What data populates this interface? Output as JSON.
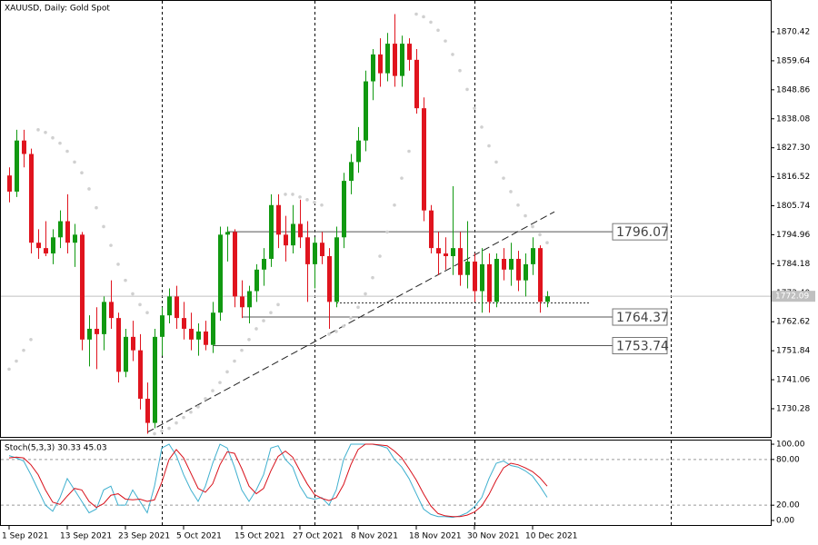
{
  "chart_data": {
    "type": "candlestick",
    "title": "XAUUSD, Daily:  Gold Spot",
    "categories": [
      "1 Sep 2021",
      null,
      null,
      null,
      null,
      null,
      null,
      null,
      "13 Sep 2021",
      null,
      null,
      null,
      null,
      null,
      null,
      null,
      "23 Sep 2021",
      null,
      null,
      null,
      null,
      null,
      null,
      null,
      "5 Oct 2021",
      null,
      null,
      null,
      null,
      null,
      null,
      null,
      "15 Oct 2021",
      null,
      null,
      null,
      null,
      null,
      null,
      null,
      "27 Oct 2021",
      null,
      null,
      null,
      null,
      null,
      null,
      null,
      "8 Nov 2021",
      null,
      null,
      null,
      null,
      null,
      null,
      null,
      "18 Nov 2021",
      null,
      null,
      null,
      null,
      null,
      null,
      null,
      "30 Nov 2021",
      null,
      null,
      null,
      null,
      null,
      null,
      null,
      "10 Dec 2021",
      null,
      null
    ],
    "open": [
      1817,
      1811,
      1830,
      1825,
      1792,
      1790,
      1788,
      1794,
      1800,
      1792,
      1795,
      1756,
      1760,
      1758,
      1770,
      1764,
      1744,
      1757,
      1752,
      1734,
      1725,
      1757,
      1765,
      1772,
      1764,
      1760,
      1756,
      1759,
      1754,
      1766,
      1795,
      1796,
      1772,
      1768,
      1774,
      1782,
      1786,
      1806,
      1795,
      1791,
      1799,
      1794,
      1784,
      1792,
      1787,
      1770,
      1794,
      1815,
      1822,
      1830,
      1852,
      1862,
      1855,
      1866,
      1854,
      1866,
      1860,
      1842,
      1804,
      1790,
      1788,
      1787,
      1790,
      1780,
      1785,
      1774,
      1784,
      1770,
      1786,
      1782,
      1786,
      1778,
      1784,
      1790,
      1770
    ],
    "high": [
      1820,
      1834,
      1834,
      1827,
      1797,
      1800,
      1797,
      1804,
      1810,
      1799,
      1796,
      1765,
      1768,
      1772,
      1778,
      1766,
      1760,
      1763,
      1758,
      1740,
      1760,
      1768,
      1775,
      1776,
      1770,
      1766,
      1762,
      1763,
      1770,
      1798,
      1798,
      1797,
      1778,
      1776,
      1784,
      1790,
      1810,
      1810,
      1802,
      1806,
      1808,
      1800,
      1794,
      1796,
      1790,
      1798,
      1818,
      1825,
      1835,
      1856,
      1864,
      1868,
      1870,
      1877,
      1869,
      1868,
      1864,
      1846,
      1806,
      1796,
      1794,
      1813,
      1796,
      1800,
      1788,
      1790,
      1788,
      1788,
      1790,
      1792,
      1789,
      1788,
      1794,
      1791,
      1774
    ],
    "low": [
      1807,
      1809,
      1820,
      1788,
      1786,
      1787,
      1784,
      1790,
      1788,
      1783,
      1752,
      1746,
      1745,
      1752,
      1760,
      1740,
      1742,
      1748,
      1730,
      1721,
      1723,
      1750,
      1762,
      1760,
      1756,
      1752,
      1750,
      1752,
      1751,
      1763,
      1785,
      1768,
      1764,
      1762,
      1770,
      1776,
      1783,
      1790,
      1785,
      1788,
      1790,
      1770,
      1775,
      1784,
      1760,
      1768,
      1790,
      1810,
      1818,
      1826,
      1845,
      1850,
      1852,
      1850,
      1850,
      1856,
      1840,
      1800,
      1788,
      1780,
      1782,
      1780,
      1776,
      1775,
      1770,
      1766,
      1766,
      1768,
      1778,
      1776,
      1774,
      1772,
      1780,
      1766,
      1768
    ],
    "close": [
      1811,
      1830,
      1825,
      1792,
      1790,
      1788,
      1794,
      1800,
      1792,
      1795,
      1756,
      1760,
      1758,
      1770,
      1764,
      1744,
      1757,
      1752,
      1734,
      1725,
      1757,
      1765,
      1772,
      1764,
      1760,
      1756,
      1759,
      1754,
      1766,
      1795,
      1796,
      1772,
      1768,
      1774,
      1782,
      1786,
      1806,
      1795,
      1791,
      1799,
      1794,
      1784,
      1792,
      1787,
      1770,
      1794,
      1815,
      1822,
      1830,
      1852,
      1862,
      1855,
      1866,
      1854,
      1866,
      1860,
      1842,
      1804,
      1790,
      1788,
      1787,
      1790,
      1780,
      1785,
      1774,
      1784,
      1770,
      1786,
      1782,
      1786,
      1778,
      1784,
      1790,
      1770,
      1772.09
    ],
    "up_color": "#119911",
    "down_color": "#e0141e",
    "sar": [
      1745,
      1748,
      1752,
      1756,
      1834,
      1833,
      1831,
      1829,
      1826,
      1822,
      1818,
      1812,
      1805,
      1798,
      1791,
      1784,
      1778,
      1773,
      1769,
      1766,
      1721,
      1722,
      1723,
      1725,
      1727,
      1729,
      1731,
      1734,
      1737,
      1740,
      1744,
      1748,
      1752,
      1756,
      1760,
      1763,
      1766,
      1769,
      1810,
      1810,
      1809,
      1808,
      1807,
      1806,
      1758,
      1759,
      1761,
      1764,
      1768,
      1773,
      1779,
      1787,
      1796,
      1806,
      1816,
      1826,
      1877,
      1876,
      1874,
      1871,
      1867,
      1862,
      1856,
      1849,
      1842,
      1835,
      1828,
      1822,
      1816,
      1811,
      1806,
      1802,
      1798,
      1795,
      1792
    ],
    "sar_color": "#d0d0d0",
    "ylim": [
      1719.8,
      1882.24
    ],
    "yticks": [
      {
        "value": 1870.42,
        "label": "1870.42"
      },
      {
        "value": 1859.64,
        "label": "1859.64"
      },
      {
        "value": 1848.86,
        "label": "1848.86"
      },
      {
        "value": 1838.08,
        "label": "1838.08"
      },
      {
        "value": 1827.3,
        "label": "1827.30"
      },
      {
        "value": 1816.52,
        "label": "1816.52"
      },
      {
        "value": 1805.74,
        "label": "1805.74"
      },
      {
        "value": 1794.96,
        "label": "1794.96"
      },
      {
        "value": 1784.18,
        "label": "1784.18"
      },
      {
        "value": 1773.4,
        "label": "1773.40"
      },
      {
        "value": 1762.62,
        "label": "1762.62"
      },
      {
        "value": 1751.84,
        "label": "1751.84"
      },
      {
        "value": 1741.06,
        "label": "1741.06"
      },
      {
        "value": 1730.28,
        "label": "1730.28"
      }
    ],
    "levels": [
      {
        "value": 1796.07,
        "label": "1796.07",
        "from": 30
      },
      {
        "value": 1764.37,
        "label": "1764.37",
        "from": 32
      },
      {
        "value": 1753.74,
        "label": "1753.74",
        "from": 28
      }
    ],
    "dotted_level": {
      "value": 1769.6,
      "from": 45
    },
    "current_price": {
      "value": 1772.09,
      "label": "1772.09"
    },
    "trendline": [
      [
        19,
        1721.5
      ],
      [
        75,
        1803.5
      ]
    ],
    "stoch": {
      "label": "Stoch(5,3,3) 30.33 45.03",
      "ylim": [
        -6,
        104.8
      ],
      "yticks": [
        {
          "value": 100,
          "label": "100.00"
        },
        {
          "value": 80,
          "label": "80.00"
        },
        {
          "value": 20,
          "label": "20.00"
        },
        {
          "value": 0,
          "label": "0.00"
        }
      ],
      "levels": [
        80,
        20
      ],
      "series": [
        {
          "name": "main",
          "color": "#3fb0cf",
          "values": [
            85,
            82,
            78,
            60,
            40,
            20,
            12,
            30,
            55,
            40,
            25,
            10,
            15,
            40,
            45,
            20,
            20,
            40,
            25,
            10,
            45,
            95,
            100,
            85,
            60,
            40,
            25,
            45,
            75,
            100,
            95,
            70,
            40,
            25,
            40,
            60,
            95,
            98,
            80,
            70,
            45,
            30,
            28,
            30,
            20,
            40,
            80,
            100,
            100,
            100,
            100,
            98,
            95,
            80,
            70,
            55,
            35,
            15,
            8,
            5,
            5,
            4,
            6,
            10,
            18,
            30,
            55,
            75,
            78,
            72,
            70,
            65,
            58,
            45,
            30.33
          ]
        },
        {
          "name": "signal",
          "color": "#d8101a",
          "values": [
            82,
            83,
            82,
            73,
            60,
            40,
            24,
            21,
            32,
            42,
            40,
            25,
            17,
            22,
            33,
            35,
            28,
            27,
            28,
            25,
            27,
            50,
            80,
            93,
            82,
            62,
            42,
            37,
            48,
            73,
            90,
            88,
            68,
            45,
            35,
            42,
            65,
            84,
            91,
            83,
            65,
            48,
            34,
            29,
            26,
            30,
            47,
            73,
            93,
            100,
            100,
            99,
            98,
            91,
            82,
            68,
            53,
            35,
            19,
            9,
            6,
            5,
            5,
            7,
            11,
            19,
            34,
            53,
            69,
            75,
            73,
            69,
            64,
            56,
            45.03
          ]
        }
      ]
    }
  }
}
